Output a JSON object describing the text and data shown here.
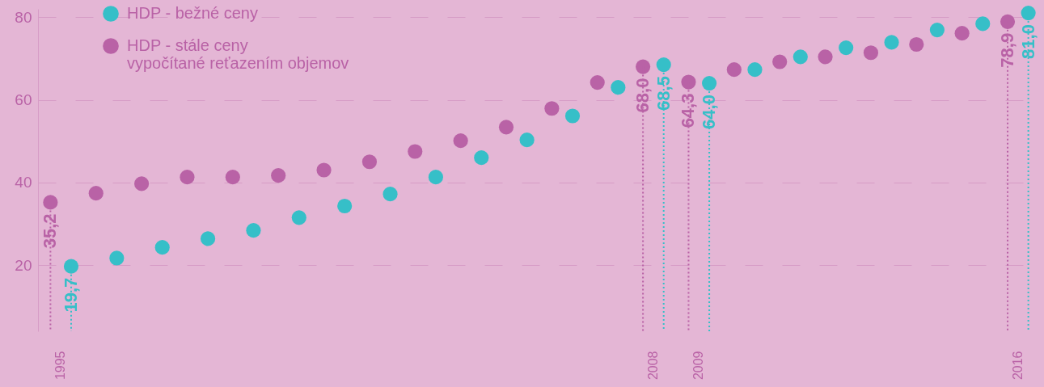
{
  "chart_data": {
    "type": "scatter",
    "categories": [
      "1995",
      null,
      null,
      null,
      null,
      null,
      null,
      null,
      null,
      null,
      null,
      null,
      null,
      "2008",
      "2009",
      null,
      null,
      null,
      null,
      null,
      null,
      "2016"
    ],
    "series": [
      {
        "name": "HDP - bežné ceny",
        "color": "#36bfc8",
        "values": [
          19.7,
          21.7,
          24.3,
          26.4,
          28.4,
          31.5,
          34.3,
          37.2,
          41.3,
          46.0,
          50.3,
          56.1,
          63.0,
          68.5,
          64.0,
          67.3,
          70.4,
          72.6,
          73.9,
          76.9,
          78.4,
          81.0
        ],
        "value_labels": [
          "19,7",
          null,
          null,
          null,
          null,
          null,
          null,
          null,
          null,
          null,
          null,
          null,
          null,
          "68,5",
          "64,0",
          null,
          null,
          null,
          null,
          null,
          null,
          "81,0"
        ]
      },
      {
        "name": "HDP - stále ceny vypočítané reťazením objemov",
        "color": "#b962a6",
        "values": [
          35.2,
          37.4,
          39.7,
          41.3,
          41.3,
          41.7,
          43.0,
          45.0,
          47.5,
          50.1,
          53.4,
          57.9,
          64.2,
          68.0,
          64.3,
          67.3,
          69.2,
          70.4,
          71.4,
          73.4,
          76.1,
          78.9
        ],
        "value_labels": [
          "35,2",
          null,
          null,
          null,
          null,
          null,
          null,
          null,
          null,
          null,
          null,
          null,
          null,
          "68,0",
          "64,3",
          null,
          null,
          null,
          null,
          null,
          null,
          "78,9"
        ]
      }
    ],
    "ylim": [
      4,
      82
    ],
    "yticks": [
      20,
      40,
      60,
      80
    ],
    "grid": "y",
    "legend": "top left",
    "marker": "circle"
  }
}
